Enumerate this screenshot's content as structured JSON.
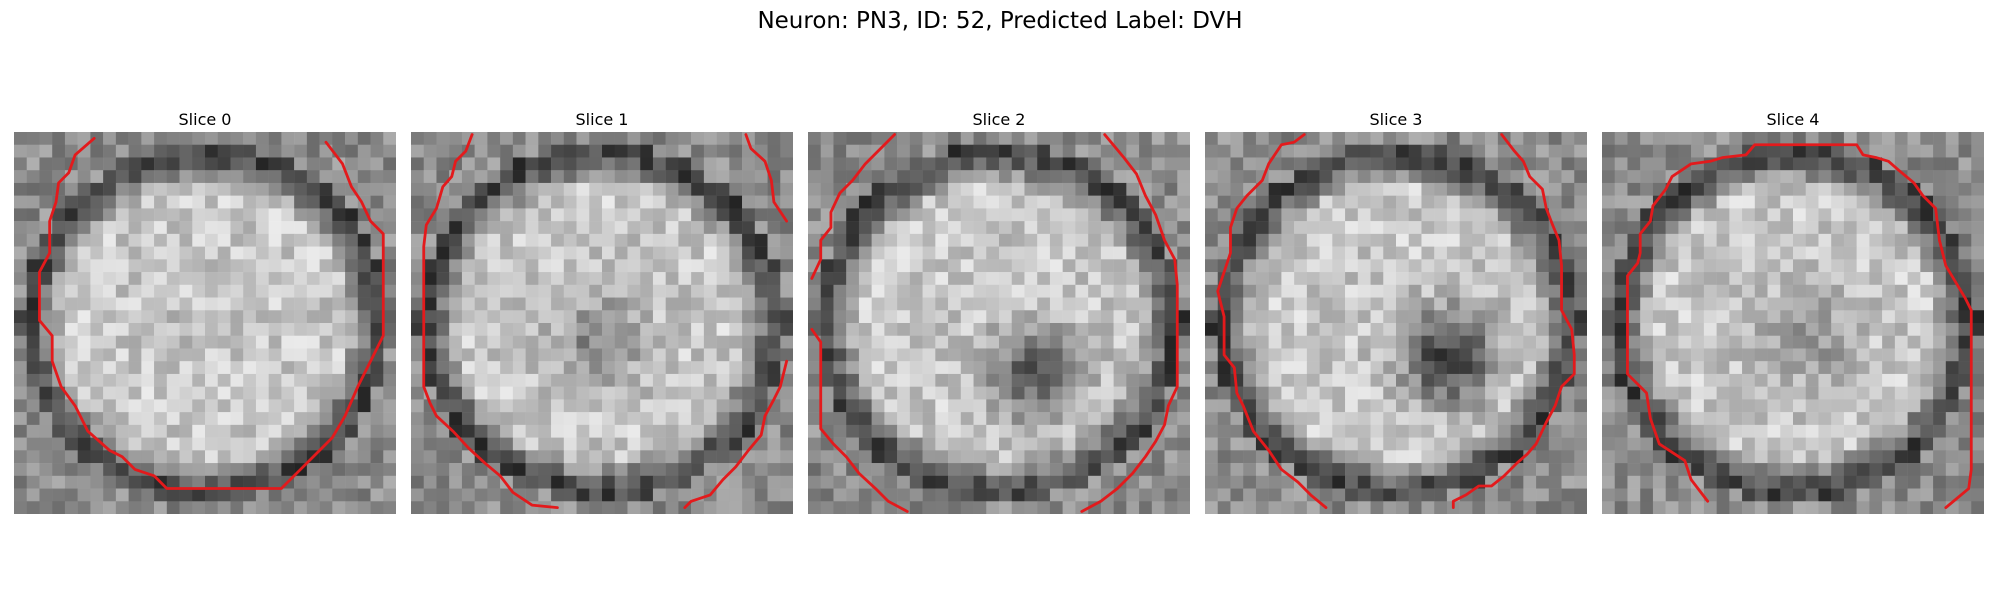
{
  "figure": {
    "title": "Neuron: PN3, ID: 52, Predicted Label: DVH"
  },
  "panels": [
    {
      "title": "Slice 0",
      "dark_center": [
        0.5,
        0.5
      ],
      "dark_strength": 0.05,
      "seed": 11
    },
    {
      "title": "Slice 1",
      "dark_center": [
        0.48,
        0.53
      ],
      "dark_strength": 0.45,
      "seed": 23
    },
    {
      "title": "Slice 2",
      "dark_center": [
        0.58,
        0.62
      ],
      "dark_strength": 0.75,
      "seed": 37
    },
    {
      "title": "Slice 3",
      "dark_center": [
        0.62,
        0.57
      ],
      "dark_strength": 0.95,
      "seed": 41
    },
    {
      "title": "Slice 4",
      "dark_center": [
        0.52,
        0.52
      ],
      "dark_strength": 0.4,
      "seed": 59
    }
  ],
  "colors": {
    "contour": "#e31a1c"
  }
}
